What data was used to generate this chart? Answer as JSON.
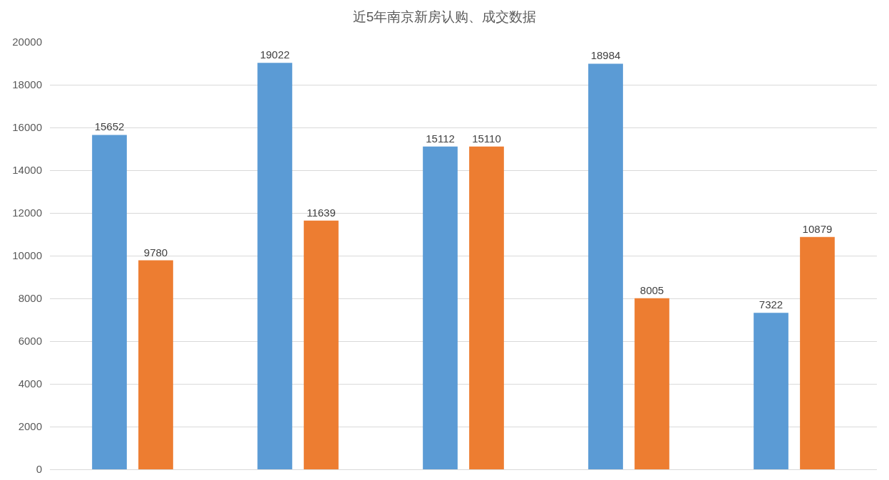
{
  "chart_data": {
    "type": "bar",
    "title": "近5年南京新房认购、成交数据",
    "categories": [
      null,
      null,
      null,
      null,
      null
    ],
    "series": [
      {
        "color": "#5b9bd5",
        "values": [
          15652,
          19022,
          15112,
          18984,
          7322
        ]
      },
      {
        "color": "#ed7d31",
        "values": [
          9780,
          11639,
          15110,
          8005,
          10879
        ]
      }
    ],
    "ylim": [
      0,
      20000
    ],
    "yticks": [
      0,
      2000,
      4000,
      6000,
      8000,
      10000,
      12000,
      14000,
      16000,
      18000,
      20000
    ],
    "grid": "y",
    "data_labels": true
  }
}
